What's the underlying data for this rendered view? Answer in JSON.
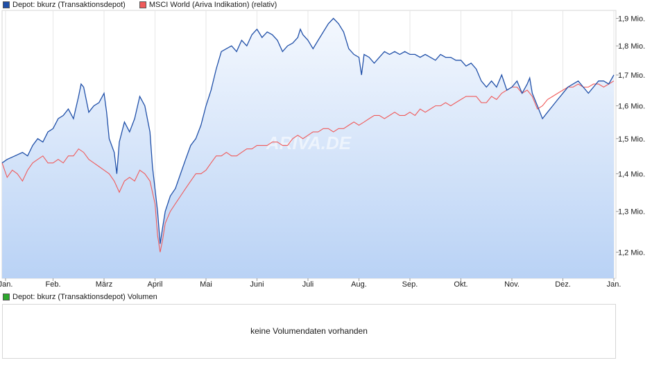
{
  "legend": {
    "series1_label": "Depot: bkurz (Transaktionsdepot)",
    "series1_color": "#1f4fa8",
    "series2_label": "MSCI World (Ariva Indikation) (relativ)",
    "series2_color": "#f05a5a"
  },
  "volume_panel": {
    "legend_label": "Depot: bkurz (Transaktionsdepot) Volumen",
    "legend_color": "#2ca82c",
    "message": "keine Volumendaten vorhanden"
  },
  "watermark": "ARIVA.DE",
  "chart_data": {
    "type": "line",
    "x_tick_labels": [
      "Jan.",
      "Feb.",
      "März",
      "April",
      "Mai",
      "Juni",
      "Juli",
      "Aug.",
      "Sep.",
      "Okt.",
      "Nov.",
      "Dez.",
      "Jan."
    ],
    "y_tick_labels": [
      "1,2 Mio.",
      "1,3 Mio.",
      "1,4 Mio.",
      "1,5 Mio.",
      "1,6 Mio.",
      "1,7 Mio.",
      "1,8 Mio.",
      "1,9 Mio."
    ],
    "y_ticks": [
      1.2,
      1.3,
      1.4,
      1.5,
      1.6,
      1.7,
      1.8,
      1.9
    ],
    "y_unit": "Mio.",
    "ylim": [
      1.14,
      1.93
    ],
    "y_scale": "log",
    "xlim": [
      0,
      12
    ],
    "grid": "vertical",
    "legend_position": "top-left",
    "series": [
      {
        "name": "Depot: bkurz (Transaktionsdepot)",
        "color": "#1f4fa8",
        "fill": "gradient",
        "points": [
          [
            0,
            1.43
          ],
          [
            0.1,
            1.44
          ],
          [
            0.25,
            1.45
          ],
          [
            0.4,
            1.46
          ],
          [
            0.5,
            1.45
          ],
          [
            0.6,
            1.48
          ],
          [
            0.7,
            1.5
          ],
          [
            0.8,
            1.49
          ],
          [
            0.9,
            1.52
          ],
          [
            1,
            1.53
          ],
          [
            1.1,
            1.56
          ],
          [
            1.2,
            1.57
          ],
          [
            1.3,
            1.59
          ],
          [
            1.4,
            1.56
          ],
          [
            1.5,
            1.63
          ],
          [
            1.55,
            1.67
          ],
          [
            1.6,
            1.66
          ],
          [
            1.7,
            1.58
          ],
          [
            1.8,
            1.6
          ],
          [
            1.9,
            1.61
          ],
          [
            2,
            1.64
          ],
          [
            2.05,
            1.58
          ],
          [
            2.1,
            1.5
          ],
          [
            2.2,
            1.46
          ],
          [
            2.25,
            1.4
          ],
          [
            2.3,
            1.49
          ],
          [
            2.4,
            1.55
          ],
          [
            2.5,
            1.52
          ],
          [
            2.6,
            1.56
          ],
          [
            2.7,
            1.63
          ],
          [
            2.8,
            1.6
          ],
          [
            2.9,
            1.52
          ],
          [
            2.95,
            1.42
          ],
          [
            3.05,
            1.3
          ],
          [
            3.1,
            1.22
          ],
          [
            3.15,
            1.26
          ],
          [
            3.2,
            1.3
          ],
          [
            3.3,
            1.34
          ],
          [
            3.4,
            1.36
          ],
          [
            3.5,
            1.4
          ],
          [
            3.6,
            1.44
          ],
          [
            3.7,
            1.48
          ],
          [
            3.8,
            1.5
          ],
          [
            3.9,
            1.54
          ],
          [
            4,
            1.6
          ],
          [
            4.1,
            1.65
          ],
          [
            4.2,
            1.72
          ],
          [
            4.3,
            1.78
          ],
          [
            4.4,
            1.79
          ],
          [
            4.5,
            1.8
          ],
          [
            4.6,
            1.78
          ],
          [
            4.7,
            1.82
          ],
          [
            4.8,
            1.8
          ],
          [
            4.9,
            1.84
          ],
          [
            5,
            1.86
          ],
          [
            5.1,
            1.83
          ],
          [
            5.2,
            1.85
          ],
          [
            5.3,
            1.84
          ],
          [
            5.4,
            1.82
          ],
          [
            5.5,
            1.78
          ],
          [
            5.6,
            1.8
          ],
          [
            5.7,
            1.81
          ],
          [
            5.8,
            1.83
          ],
          [
            5.85,
            1.86
          ],
          [
            5.9,
            1.84
          ],
          [
            6,
            1.82
          ],
          [
            6.1,
            1.79
          ],
          [
            6.2,
            1.82
          ],
          [
            6.3,
            1.85
          ],
          [
            6.4,
            1.88
          ],
          [
            6.5,
            1.9
          ],
          [
            6.6,
            1.88
          ],
          [
            6.7,
            1.85
          ],
          [
            6.8,
            1.79
          ],
          [
            6.9,
            1.77
          ],
          [
            7,
            1.76
          ],
          [
            7.05,
            1.7
          ],
          [
            7.1,
            1.77
          ],
          [
            7.2,
            1.76
          ],
          [
            7.3,
            1.74
          ],
          [
            7.4,
            1.76
          ],
          [
            7.5,
            1.78
          ],
          [
            7.6,
            1.77
          ],
          [
            7.7,
            1.78
          ],
          [
            7.8,
            1.77
          ],
          [
            7.9,
            1.78
          ],
          [
            8,
            1.77
          ],
          [
            8.1,
            1.77
          ],
          [
            8.2,
            1.76
          ],
          [
            8.3,
            1.77
          ],
          [
            8.4,
            1.76
          ],
          [
            8.5,
            1.75
          ],
          [
            8.6,
            1.77
          ],
          [
            8.7,
            1.76
          ],
          [
            8.8,
            1.76
          ],
          [
            8.9,
            1.75
          ],
          [
            9,
            1.75
          ],
          [
            9.1,
            1.73
          ],
          [
            9.2,
            1.74
          ],
          [
            9.3,
            1.72
          ],
          [
            9.4,
            1.68
          ],
          [
            9.5,
            1.66
          ],
          [
            9.6,
            1.68
          ],
          [
            9.7,
            1.66
          ],
          [
            9.8,
            1.7
          ],
          [
            9.9,
            1.65
          ],
          [
            10,
            1.66
          ],
          [
            10.1,
            1.68
          ],
          [
            10.2,
            1.64
          ],
          [
            10.3,
            1.67
          ],
          [
            10.35,
            1.69
          ],
          [
            10.4,
            1.64
          ],
          [
            10.5,
            1.6
          ],
          [
            10.6,
            1.56
          ],
          [
            10.7,
            1.58
          ],
          [
            10.8,
            1.6
          ],
          [
            10.9,
            1.62
          ],
          [
            11,
            1.64
          ],
          [
            11.1,
            1.66
          ],
          [
            11.2,
            1.67
          ],
          [
            11.3,
            1.68
          ],
          [
            11.4,
            1.66
          ],
          [
            11.5,
            1.64
          ],
          [
            11.6,
            1.66
          ],
          [
            11.7,
            1.68
          ],
          [
            11.8,
            1.68
          ],
          [
            11.9,
            1.67
          ],
          [
            12,
            1.7
          ]
        ]
      },
      {
        "name": "MSCI World (Ariva Indikation) (relativ)",
        "color": "#f05a5a",
        "points": [
          [
            0,
            1.43
          ],
          [
            0.1,
            1.39
          ],
          [
            0.2,
            1.41
          ],
          [
            0.3,
            1.4
          ],
          [
            0.4,
            1.38
          ],
          [
            0.5,
            1.41
          ],
          [
            0.6,
            1.43
          ],
          [
            0.7,
            1.44
          ],
          [
            0.8,
            1.45
          ],
          [
            0.9,
            1.43
          ],
          [
            1,
            1.43
          ],
          [
            1.1,
            1.44
          ],
          [
            1.2,
            1.43
          ],
          [
            1.3,
            1.45
          ],
          [
            1.4,
            1.45
          ],
          [
            1.5,
            1.47
          ],
          [
            1.6,
            1.46
          ],
          [
            1.7,
            1.44
          ],
          [
            1.8,
            1.43
          ],
          [
            1.9,
            1.42
          ],
          [
            2,
            1.41
          ],
          [
            2.1,
            1.4
          ],
          [
            2.2,
            1.38
          ],
          [
            2.3,
            1.35
          ],
          [
            2.4,
            1.38
          ],
          [
            2.5,
            1.39
          ],
          [
            2.6,
            1.38
          ],
          [
            2.7,
            1.41
          ],
          [
            2.8,
            1.4
          ],
          [
            2.9,
            1.38
          ],
          [
            3,
            1.32
          ],
          [
            3.05,
            1.24
          ],
          [
            3.1,
            1.2
          ],
          [
            3.15,
            1.23
          ],
          [
            3.2,
            1.27
          ],
          [
            3.3,
            1.3
          ],
          [
            3.4,
            1.32
          ],
          [
            3.5,
            1.34
          ],
          [
            3.6,
            1.36
          ],
          [
            3.7,
            1.38
          ],
          [
            3.8,
            1.4
          ],
          [
            3.9,
            1.4
          ],
          [
            4,
            1.41
          ],
          [
            4.1,
            1.43
          ],
          [
            4.2,
            1.45
          ],
          [
            4.3,
            1.45
          ],
          [
            4.4,
            1.46
          ],
          [
            4.5,
            1.45
          ],
          [
            4.6,
            1.45
          ],
          [
            4.7,
            1.46
          ],
          [
            4.8,
            1.47
          ],
          [
            4.9,
            1.47
          ],
          [
            5,
            1.48
          ],
          [
            5.1,
            1.48
          ],
          [
            5.2,
            1.48
          ],
          [
            5.3,
            1.49
          ],
          [
            5.4,
            1.49
          ],
          [
            5.5,
            1.48
          ],
          [
            5.6,
            1.48
          ],
          [
            5.7,
            1.5
          ],
          [
            5.8,
            1.51
          ],
          [
            5.9,
            1.5
          ],
          [
            6,
            1.51
          ],
          [
            6.1,
            1.52
          ],
          [
            6.2,
            1.52
          ],
          [
            6.3,
            1.53
          ],
          [
            6.4,
            1.53
          ],
          [
            6.5,
            1.52
          ],
          [
            6.6,
            1.53
          ],
          [
            6.7,
            1.53
          ],
          [
            6.8,
            1.54
          ],
          [
            6.9,
            1.55
          ],
          [
            7,
            1.54
          ],
          [
            7.1,
            1.55
          ],
          [
            7.2,
            1.56
          ],
          [
            7.3,
            1.57
          ],
          [
            7.4,
            1.57
          ],
          [
            7.5,
            1.56
          ],
          [
            7.6,
            1.57
          ],
          [
            7.7,
            1.58
          ],
          [
            7.8,
            1.57
          ],
          [
            7.9,
            1.57
          ],
          [
            8,
            1.58
          ],
          [
            8.1,
            1.57
          ],
          [
            8.2,
            1.59
          ],
          [
            8.3,
            1.58
          ],
          [
            8.4,
            1.59
          ],
          [
            8.5,
            1.6
          ],
          [
            8.6,
            1.6
          ],
          [
            8.7,
            1.61
          ],
          [
            8.8,
            1.6
          ],
          [
            8.9,
            1.61
          ],
          [
            9,
            1.62
          ],
          [
            9.1,
            1.63
          ],
          [
            9.2,
            1.63
          ],
          [
            9.3,
            1.63
          ],
          [
            9.4,
            1.61
          ],
          [
            9.5,
            1.61
          ],
          [
            9.6,
            1.63
          ],
          [
            9.7,
            1.62
          ],
          [
            9.8,
            1.64
          ],
          [
            9.9,
            1.65
          ],
          [
            10,
            1.66
          ],
          [
            10.1,
            1.66
          ],
          [
            10.2,
            1.64
          ],
          [
            10.3,
            1.65
          ],
          [
            10.4,
            1.63
          ],
          [
            10.5,
            1.59
          ],
          [
            10.6,
            1.6
          ],
          [
            10.7,
            1.62
          ],
          [
            10.8,
            1.63
          ],
          [
            10.9,
            1.64
          ],
          [
            11,
            1.65
          ],
          [
            11.1,
            1.66
          ],
          [
            11.2,
            1.66
          ],
          [
            11.3,
            1.67
          ],
          [
            11.4,
            1.66
          ],
          [
            11.5,
            1.66
          ],
          [
            11.6,
            1.67
          ],
          [
            11.7,
            1.67
          ],
          [
            11.8,
            1.66
          ],
          [
            11.9,
            1.67
          ],
          [
            12,
            1.68
          ]
        ]
      }
    ]
  }
}
